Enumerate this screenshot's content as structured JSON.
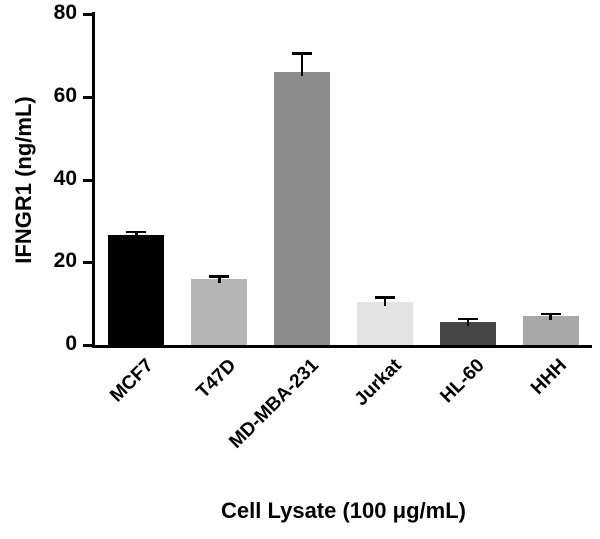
{
  "chart_data": {
    "type": "bar",
    "title": "",
    "xlabel": "Cell Lysate (100 μg/mL)",
    "ylabel": "IFNGR1 (ng/mL)",
    "categories": [
      "MCF7",
      "T47D",
      "MD-MBA-231",
      "Jurkat",
      "HL-60",
      "HHH"
    ],
    "values": [
      26.5,
      16.0,
      66.0,
      10.5,
      5.5,
      7.0
    ],
    "errors": [
      0.9,
      0.6,
      4.5,
      1.0,
      0.8,
      0.6
    ],
    "bar_colors": [
      "#000000",
      "#b5b5b5",
      "#8c8c8c",
      "#e3e3e3",
      "#474747",
      "#a8a8a8"
    ],
    "error_color": "#000000",
    "axis_color": "#000000",
    "ylim": [
      0,
      80
    ],
    "yticks": [
      0,
      20,
      40,
      60,
      80
    ],
    "grid": false,
    "legend": "none"
  }
}
